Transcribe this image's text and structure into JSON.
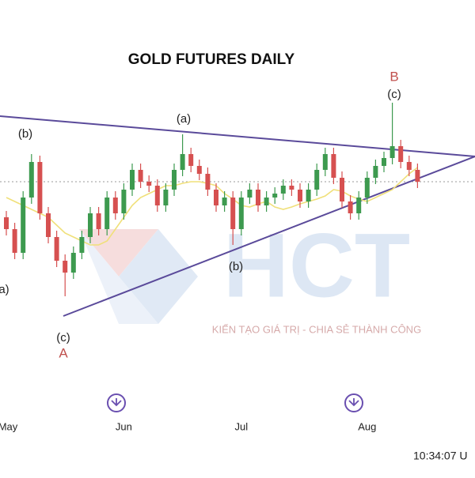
{
  "chart_data": {
    "type": "candlestick",
    "title": "GOLD FUTURES DAILY",
    "categories": [
      "May",
      null,
      null,
      null,
      null,
      null,
      null,
      null,
      null,
      null,
      null,
      null,
      null,
      null,
      "Jun",
      null,
      null,
      null,
      null,
      null,
      null,
      null,
      null,
      null,
      null,
      null,
      null,
      null,
      "Jul",
      null,
      null,
      null,
      null,
      null,
      null,
      null,
      null,
      null,
      null,
      null,
      null,
      null,
      null,
      "Aug",
      null,
      null,
      null,
      null,
      null,
      null
    ],
    "open": [
      2045,
      2030,
      2000,
      2070,
      2115,
      2050,
      2020,
      1990,
      1975,
      2000,
      2020,
      2050,
      2030,
      2070,
      2050,
      2080,
      2105,
      2090,
      2085,
      2060,
      2080,
      2105,
      2125,
      2110,
      2100,
      2080,
      2060,
      2070,
      2030,
      2070,
      2080,
      2060,
      2070,
      2075,
      2085,
      2080,
      2065,
      2080,
      2105,
      2125,
      2095,
      2065,
      2050,
      2070,
      2095,
      2110,
      2120,
      2135,
      2115,
      2105
    ],
    "high": [
      2053,
      2038,
      2078,
      2125,
      2123,
      2058,
      2028,
      1998,
      2008,
      2028,
      2058,
      2058,
      2078,
      2078,
      2088,
      2113,
      2113,
      2098,
      2093,
      2088,
      2113,
      2150,
      2133,
      2118,
      2108,
      2088,
      2078,
      2078,
      2078,
      2088,
      2088,
      2078,
      2083,
      2093,
      2093,
      2088,
      2088,
      2113,
      2133,
      2133,
      2103,
      2073,
      2078,
      2103,
      2118,
      2128,
      2190,
      2143,
      2123,
      2113
    ],
    "low": [
      2022,
      1992,
      1992,
      2062,
      2042,
      2012,
      1982,
      1945,
      1967,
      1992,
      2012,
      2022,
      2022,
      2042,
      2042,
      2072,
      2082,
      2077,
      2052,
      2052,
      2072,
      2097,
      2102,
      2092,
      2072,
      2052,
      2052,
      2010,
      2022,
      2062,
      2052,
      2052,
      2062,
      2067,
      2072,
      2057,
      2057,
      2072,
      2097,
      2087,
      2057,
      2042,
      2042,
      2062,
      2087,
      2102,
      2112,
      2107,
      2097,
      2082
    ],
    "close": [
      2030,
      2000,
      2070,
      2115,
      2050,
      2020,
      1990,
      1975,
      2000,
      2020,
      2050,
      2030,
      2070,
      2050,
      2080,
      2105,
      2090,
      2085,
      2060,
      2080,
      2105,
      2125,
      2110,
      2100,
      2080,
      2060,
      2070,
      2030,
      2070,
      2080,
      2060,
      2070,
      2075,
      2085,
      2080,
      2065,
      2080,
      2105,
      2125,
      2095,
      2065,
      2050,
      2070,
      2095,
      2110,
      2120,
      2135,
      2115,
      2105,
      2090
    ],
    "ma_values": [
      2070,
      2065,
      2060,
      2055,
      2050,
      2045,
      2035,
      2025,
      2020,
      2015,
      2010,
      2010,
      2015,
      2030,
      2045,
      2060,
      2070,
      2075,
      2080,
      2085,
      2085,
      2088,
      2090,
      2090,
      2088,
      2085,
      2075,
      2068,
      2060,
      2058,
      2062,
      2065,
      2058,
      2055,
      2058,
      2062,
      2065,
      2068,
      2072,
      2080,
      2078,
      2072,
      2068,
      2065,
      2070,
      2075,
      2080,
      2090,
      2100,
      2108
    ],
    "up_color": "#3d9a4f",
    "down_color": "#d65050",
    "ma_color": "#f0e07a",
    "ylim": [
      1900,
      2220
    ],
    "annotations": [
      "(b)",
      "(a)",
      "(c)",
      "B",
      "a)",
      "(b)",
      "(c)",
      "A"
    ],
    "watermark": "HCT",
    "watermark_slogan": "KIẾN TẠO GIÁ TRỊ - CHIA SẺ THÀNH CÔNG",
    "timestamp": "10:34:07 U"
  }
}
